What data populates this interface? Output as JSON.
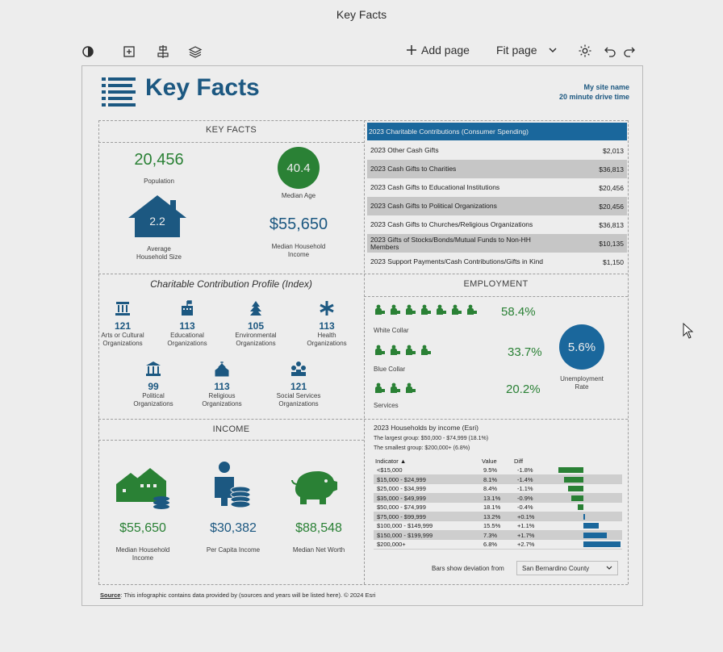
{
  "window": {
    "title": "Key Facts"
  },
  "toolbar": {
    "add_page": "Add page",
    "fit_page": "Fit page"
  },
  "header": {
    "title": "Key Facts",
    "site_name": "My site name",
    "drive_time": "20 minute drive time"
  },
  "key_facts": {
    "section_title": "KEY FACTS",
    "population": {
      "value": "20,456",
      "label": "Population"
    },
    "median_age": {
      "value": "40.4",
      "label": "Median Age"
    },
    "household_size": {
      "value": "2.2",
      "label_line1": "Average",
      "label_line2": "Household Size"
    },
    "median_income": {
      "value": "$55,650",
      "label_line1": "Median Household",
      "label_line2": "Income"
    }
  },
  "contributions": {
    "header": "2023 Charitable Contributions (Consumer Spending)",
    "rows": [
      {
        "label": "2023 Other Cash Gifts",
        "value": "$2,013"
      },
      {
        "label": "2023 Cash Gifts to Charities",
        "value": "$36,813"
      },
      {
        "label": "2023 Cash Gifts to Educational Institutions",
        "value": "$20,456"
      },
      {
        "label": "2023 Cash Gifts to Political Organizations",
        "value": "$20,456"
      },
      {
        "label": "2023 Cash Gifts to Churches/Religious Organizations",
        "value": "$36,813"
      },
      {
        "label": "2023 Gifts of Stocks/Bonds/Mutual Funds to Non-HH Members",
        "value": "$10,135"
      },
      {
        "label": "2023 Support Payments/Cash Contributions/Gifts in Kind",
        "value": "$1,150"
      }
    ]
  },
  "profile": {
    "title": "Charitable Contribution Profile (Index)",
    "items": [
      {
        "value": "121",
        "l1": "Arts or Cultural",
        "l2": "Organizations"
      },
      {
        "value": "113",
        "l1": "Educational",
        "l2": "Organizations"
      },
      {
        "value": "105",
        "l1": "Environmental",
        "l2": "Organizations"
      },
      {
        "value": "113",
        "l1": "Health",
        "l2": "Organizations"
      },
      {
        "value": "99",
        "l1": "Political",
        "l2": "Organizations"
      },
      {
        "value": "113",
        "l1": "Religious",
        "l2": "Organizations"
      },
      {
        "value": "121",
        "l1": "Social Services",
        "l2": "Organizations"
      }
    ]
  },
  "employment": {
    "title": "EMPLOYMENT",
    "white_collar": {
      "value": "58.4%",
      "label": "White Collar"
    },
    "blue_collar": {
      "value": "33.7%",
      "label": "Blue Collar"
    },
    "services": {
      "value": "20.2%",
      "label": "Services"
    },
    "unemployment": {
      "value": "5.6%",
      "label_line1": "Unemployment",
      "label_line2": "Rate"
    }
  },
  "income": {
    "title": "INCOME",
    "median_household": {
      "value": "$55,650",
      "l1": "Median Household",
      "l2": "Income"
    },
    "per_capita": {
      "value": "$30,382",
      "l1": "Per Capita Income"
    },
    "net_worth": {
      "value": "$88,548",
      "l1": "Median Net Worth"
    }
  },
  "households": {
    "title": "2023 Households by income (Esri)",
    "largest": "The largest group: $50,000 - $74,999 (18.1%)",
    "smallest": "The smallest group: $200,000+ (6.8%)",
    "col_indicator": "Indicator ▲",
    "col_value": "Value",
    "col_diff": "Diff",
    "rows": [
      {
        "indicator": "<$15,000",
        "value": "9.5%",
        "diff": "-1.8%",
        "d": -1.8
      },
      {
        "indicator": "$15,000 - $24,999",
        "value": "8.1%",
        "diff": "-1.4%",
        "d": -1.4
      },
      {
        "indicator": "$25,000 - $34,999",
        "value": "8.4%",
        "diff": "-1.1%",
        "d": -1.1
      },
      {
        "indicator": "$35,000 - $49,999",
        "value": "13.1%",
        "diff": "-0.9%",
        "d": -0.9
      },
      {
        "indicator": "$50,000 - $74,999",
        "value": "18.1%",
        "diff": "-0.4%",
        "d": -0.4
      },
      {
        "indicator": "$75,000 - $99,999",
        "value": "13.2%",
        "diff": "+0.1%",
        "d": 0.1
      },
      {
        "indicator": "$100,000 - $149,999",
        "value": "15.5%",
        "diff": "+1.1%",
        "d": 1.1
      },
      {
        "indicator": "$150,000 - $199,999",
        "value": "7.3%",
        "diff": "+1.7%",
        "d": 1.7
      },
      {
        "indicator": "$200,000+",
        "value": "6.8%",
        "diff": "+2.7%",
        "d": 2.7
      }
    ],
    "deviation_label": "Bars show deviation from",
    "deviation_select": "San Bernardino County"
  },
  "footer": {
    "source_label": "Source",
    "source_text": ": This infographic contains data provided by (sources and years will be listed here). © 2024 Esri"
  },
  "colors": {
    "brand_blue": "#1f5f8b",
    "header_blue": "#1d6fa8",
    "green": "#2e8b3a"
  }
}
